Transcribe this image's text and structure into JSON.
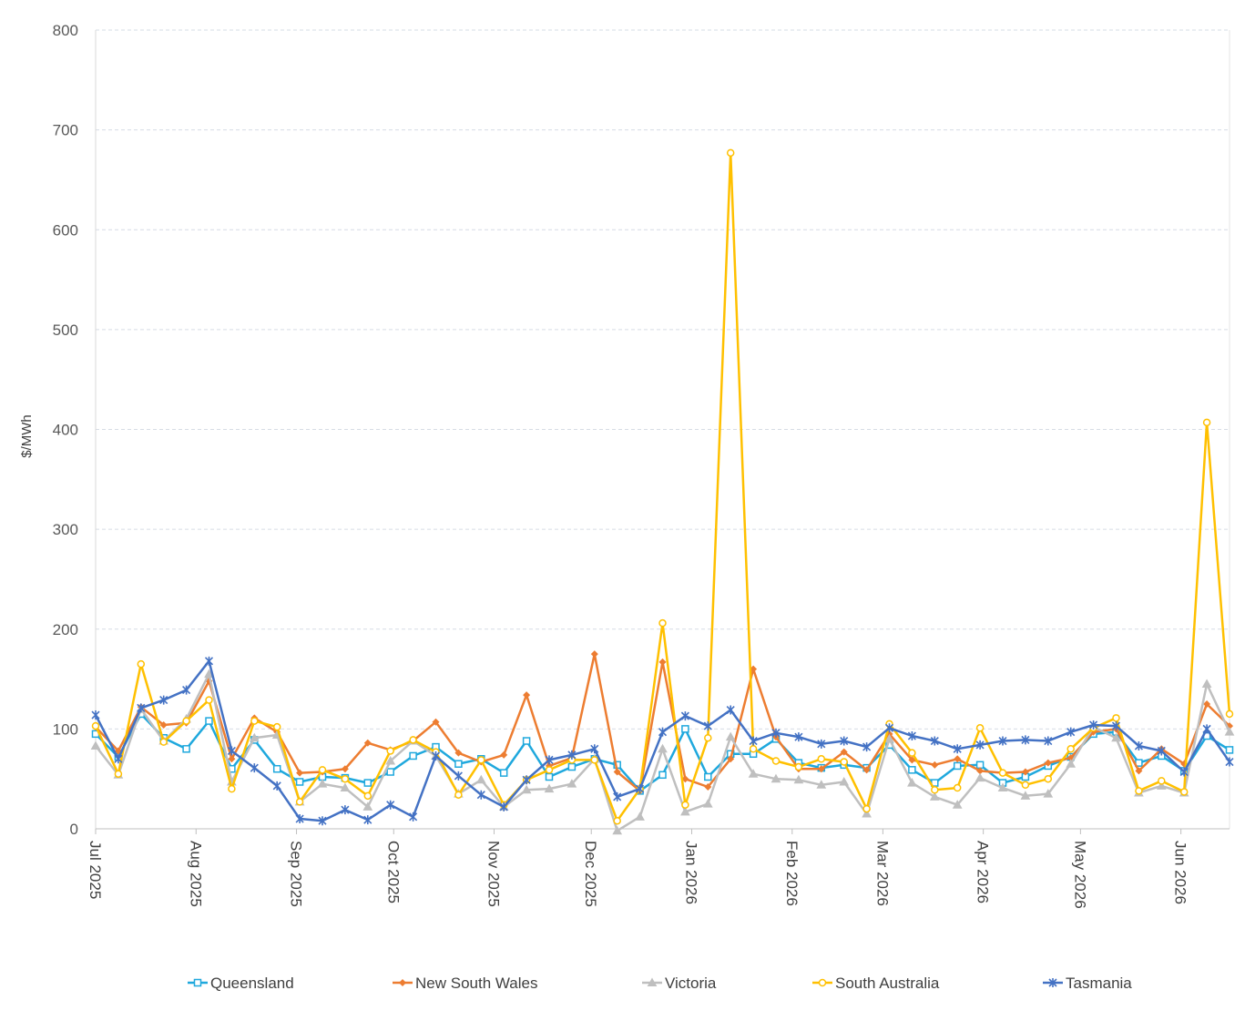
{
  "chart_data": {
    "type": "line",
    "ylabel": "$/MWh",
    "ylim": [
      0,
      800
    ],
    "y_ticks": [
      0,
      100,
      200,
      300,
      400,
      500,
      600,
      700,
      800
    ],
    "x_axis_type": "date",
    "xlim": [
      "2025-07-01",
      "2026-06-16"
    ],
    "x_ticks": [
      {
        "date": "2025-07-01",
        "label": "Jul 2025"
      },
      {
        "date": "2025-08-01",
        "label": "Aug 2025"
      },
      {
        "date": "2025-09-01",
        "label": "Sep 2025"
      },
      {
        "date": "2025-10-01",
        "label": "Oct 2025"
      },
      {
        "date": "2025-11-01",
        "label": "Nov 2025"
      },
      {
        "date": "2025-12-01",
        "label": "Dec 2025"
      },
      {
        "date": "2026-01-01",
        "label": "Jan 2026"
      },
      {
        "date": "2026-02-01",
        "label": "Feb 2026"
      },
      {
        "date": "2026-03-01",
        "label": "Mar 2026"
      },
      {
        "date": "2026-04-01",
        "label": "Apr 2026"
      },
      {
        "date": "2026-05-01",
        "label": "May 2026"
      },
      {
        "date": "2026-06-01",
        "label": "Jun 2026"
      }
    ],
    "x": [
      "2025-07-01",
      "2025-07-08",
      "2025-07-15",
      "2025-07-22",
      "2025-07-29",
      "2025-08-05",
      "2025-08-12",
      "2025-08-19",
      "2025-08-26",
      "2025-09-02",
      "2025-09-09",
      "2025-09-16",
      "2025-09-23",
      "2025-09-30",
      "2025-10-07",
      "2025-10-14",
      "2025-10-21",
      "2025-10-28",
      "2025-11-04",
      "2025-11-11",
      "2025-11-18",
      "2025-11-25",
      "2025-12-02",
      "2025-12-09",
      "2025-12-16",
      "2025-12-23",
      "2025-12-30",
      "2026-01-06",
      "2026-01-13",
      "2026-01-20",
      "2026-01-27",
      "2026-02-03",
      "2026-02-10",
      "2026-02-17",
      "2026-02-24",
      "2026-03-03",
      "2026-03-10",
      "2026-03-17",
      "2026-03-24",
      "2026-03-31",
      "2026-04-07",
      "2026-04-14",
      "2026-04-21",
      "2026-04-28",
      "2026-05-05",
      "2026-05-12",
      "2026-05-19",
      "2026-05-26",
      "2026-06-02",
      "2026-06-09",
      "2026-06-16"
    ],
    "series": [
      {
        "name": "Queensland",
        "color": "#1FA8DD",
        "marker": "square",
        "values": [
          95,
          72,
          115,
          91,
          80,
          108,
          60,
          89,
          60,
          47,
          52,
          51,
          46,
          57,
          73,
          82,
          65,
          70,
          56,
          88,
          52,
          62,
          70,
          64,
          38,
          54,
          100,
          52,
          75,
          75,
          90,
          66,
          61,
          64,
          61,
          84,
          59,
          46,
          63,
          64,
          46,
          52,
          63,
          72,
          95,
          97,
          66,
          73,
          58,
          93,
          79
        ]
      },
      {
        "name": "New South Wales",
        "color": "#ED7D31",
        "marker": "diamond",
        "values": [
          102,
          78,
          122,
          104,
          106,
          148,
          70,
          111,
          97,
          56,
          57,
          60,
          86,
          79,
          88,
          107,
          76,
          67,
          74,
          134,
          63,
          71,
          175,
          57,
          38,
          167,
          50,
          42,
          70,
          160,
          92,
          60,
          60,
          77,
          59,
          95,
          69,
          64,
          70,
          58,
          56,
          57,
          66,
          71,
          97,
          100,
          58,
          80,
          65,
          125,
          103
        ]
      },
      {
        "name": "Victoria",
        "color": "#BFBFBF",
        "marker": "triangle",
        "values": [
          83,
          54,
          120,
          88,
          110,
          155,
          47,
          91,
          94,
          27,
          45,
          41,
          22,
          68,
          88,
          73,
          35,
          49,
          22,
          39,
          40,
          45,
          70,
          -2,
          12,
          80,
          17,
          25,
          92,
          55,
          50,
          49,
          44,
          47,
          15,
          90,
          46,
          32,
          24,
          51,
          41,
          33,
          35,
          65,
          102,
          91,
          36,
          43,
          36,
          145,
          97
        ]
      },
      {
        "name": "South Australia",
        "color": "#FFC000",
        "marker": "circle",
        "values": [
          103,
          55,
          165,
          87,
          108,
          129,
          40,
          108,
          102,
          27,
          59,
          50,
          33,
          78,
          89,
          77,
          34,
          69,
          24,
          49,
          59,
          69,
          69,
          8,
          40,
          206,
          24,
          91,
          677,
          80,
          68,
          62,
          70,
          67,
          20,
          105,
          76,
          39,
          41,
          101,
          56,
          44,
          50,
          80,
          101,
          111,
          38,
          48,
          37,
          407,
          115
        ]
      },
      {
        "name": "Tasmania",
        "color": "#4472C4",
        "marker": "asterisk",
        "values": [
          114,
          70,
          121,
          129,
          139,
          168,
          78,
          61,
          43,
          10,
          8,
          19,
          9,
          24,
          12,
          73,
          53,
          34,
          22,
          49,
          69,
          74,
          80,
          32,
          40,
          97,
          113,
          103,
          119,
          88,
          96,
          92,
          85,
          88,
          82,
          101,
          93,
          88,
          80,
          84,
          88,
          89,
          88,
          97,
          104,
          103,
          83,
          78,
          57,
          100,
          67
        ]
      }
    ],
    "grid": {
      "horizontal": true,
      "vertical": false
    },
    "legend_position": "bottom"
  }
}
